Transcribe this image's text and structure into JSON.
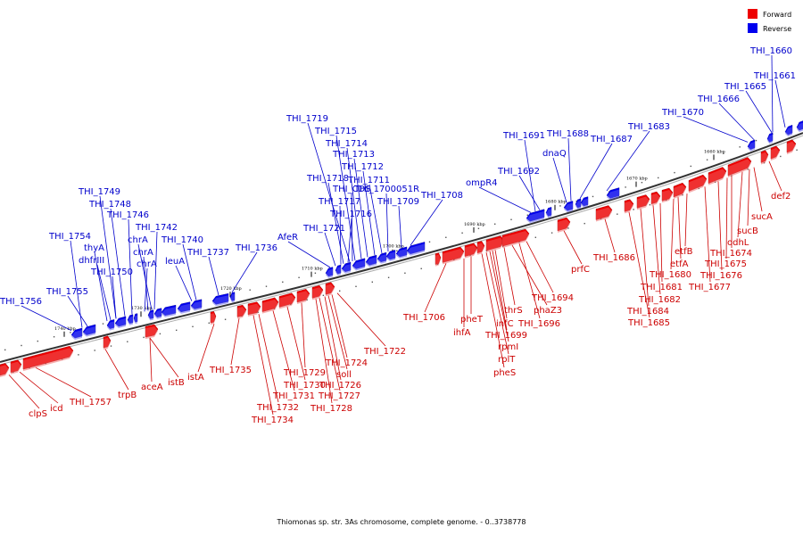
{
  "footer": "Thiomonas sp. str. 3As chromosome, complete genome. - 0..3738778",
  "legend": {
    "forward_label": "Forward",
    "reverse_label": "Reverse",
    "forward_color": "#ee0000",
    "reverse_color": "#0000ee"
  },
  "ticks": [
    "1740 kbp",
    "1730 kbp",
    "1720 kbp",
    "1710 kbp",
    "1700 kbp",
    "1690 kbp",
    "1680 kbp",
    "1670 kbp",
    "1660 kbp"
  ],
  "reverse_genes": [
    "THI_1660",
    "THI_1661",
    "THI_1665",
    "THI_1666",
    "THI_1670",
    "THI_1683",
    "THI_1687",
    "THI_1688",
    "dnaQ",
    "THI_1691",
    "THI_1692",
    "ompR4",
    "THI_1708",
    "THI_1709",
    "THI_1700051R",
    "THI_1711",
    "THI_1712",
    "THI_1713",
    "THI_1714",
    "THI_1715",
    "THI_1719",
    "THI_1718",
    "THI_CDS",
    "THI_1717",
    "THI_1716",
    "THI_1721",
    "AfeR",
    "THI_1736",
    "THI_1737",
    "THI_1740",
    "leuA",
    "THI_1742",
    "chrA",
    "chrA",
    "chrA",
    "THI_1746",
    "THI_1748",
    "THI_1749",
    "THI_1750",
    "dhfrIII",
    "thyA",
    "THI_1754",
    "THI_1755",
    "THI_1756"
  ],
  "forward_genes": [
    "def2",
    "sucA",
    "sucB",
    "odhL",
    "THI_1674",
    "THI_1675",
    "THI_1676",
    "THI_1677",
    "etfB",
    "etfA",
    "THI_1680",
    "THI_1681",
    "THI_1682",
    "THI_1684",
    "THI_1685",
    "THI_1686",
    "prfC",
    "THI_1694",
    "THI_1696",
    "phaZ3",
    "thrS",
    "infC",
    "THI_1699",
    "rpmI",
    "rplT",
    "pheS",
    "pheT",
    "ihfA",
    "THI_1706",
    "THI_1722",
    "THI_1724",
    "soll",
    "THI_1726",
    "THI_1727",
    "THI_1728",
    "THI_1729",
    "THI_1730",
    "THI_1731",
    "THI_1732",
    "THI_1734",
    "THI_1735",
    "istA",
    "istB",
    "aceA",
    "trpB",
    "THI_1757",
    "icd",
    "clpS"
  ]
}
